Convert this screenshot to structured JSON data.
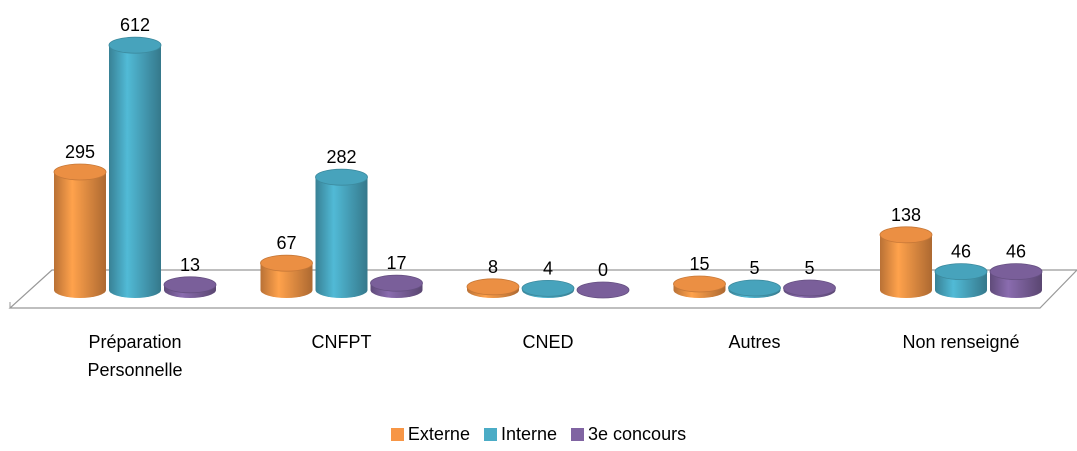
{
  "chart_data": {
    "type": "bar3d",
    "categories": [
      "Préparation Personnelle",
      "CNFPT",
      "CNED",
      "Autres",
      "Non renseigné"
    ],
    "series": [
      {
        "name": "Externe",
        "color": "#f79646",
        "values": [
          295,
          67,
          8,
          15,
          138
        ]
      },
      {
        "name": "Interne",
        "color": "#4bacc6",
        "values": [
          612,
          282,
          4,
          5,
          46
        ]
      },
      {
        "name": "3e concours",
        "color": "#8064a2",
        "values": [
          13,
          17,
          0,
          5,
          46
        ]
      }
    ],
    "legend": "bottom"
  }
}
